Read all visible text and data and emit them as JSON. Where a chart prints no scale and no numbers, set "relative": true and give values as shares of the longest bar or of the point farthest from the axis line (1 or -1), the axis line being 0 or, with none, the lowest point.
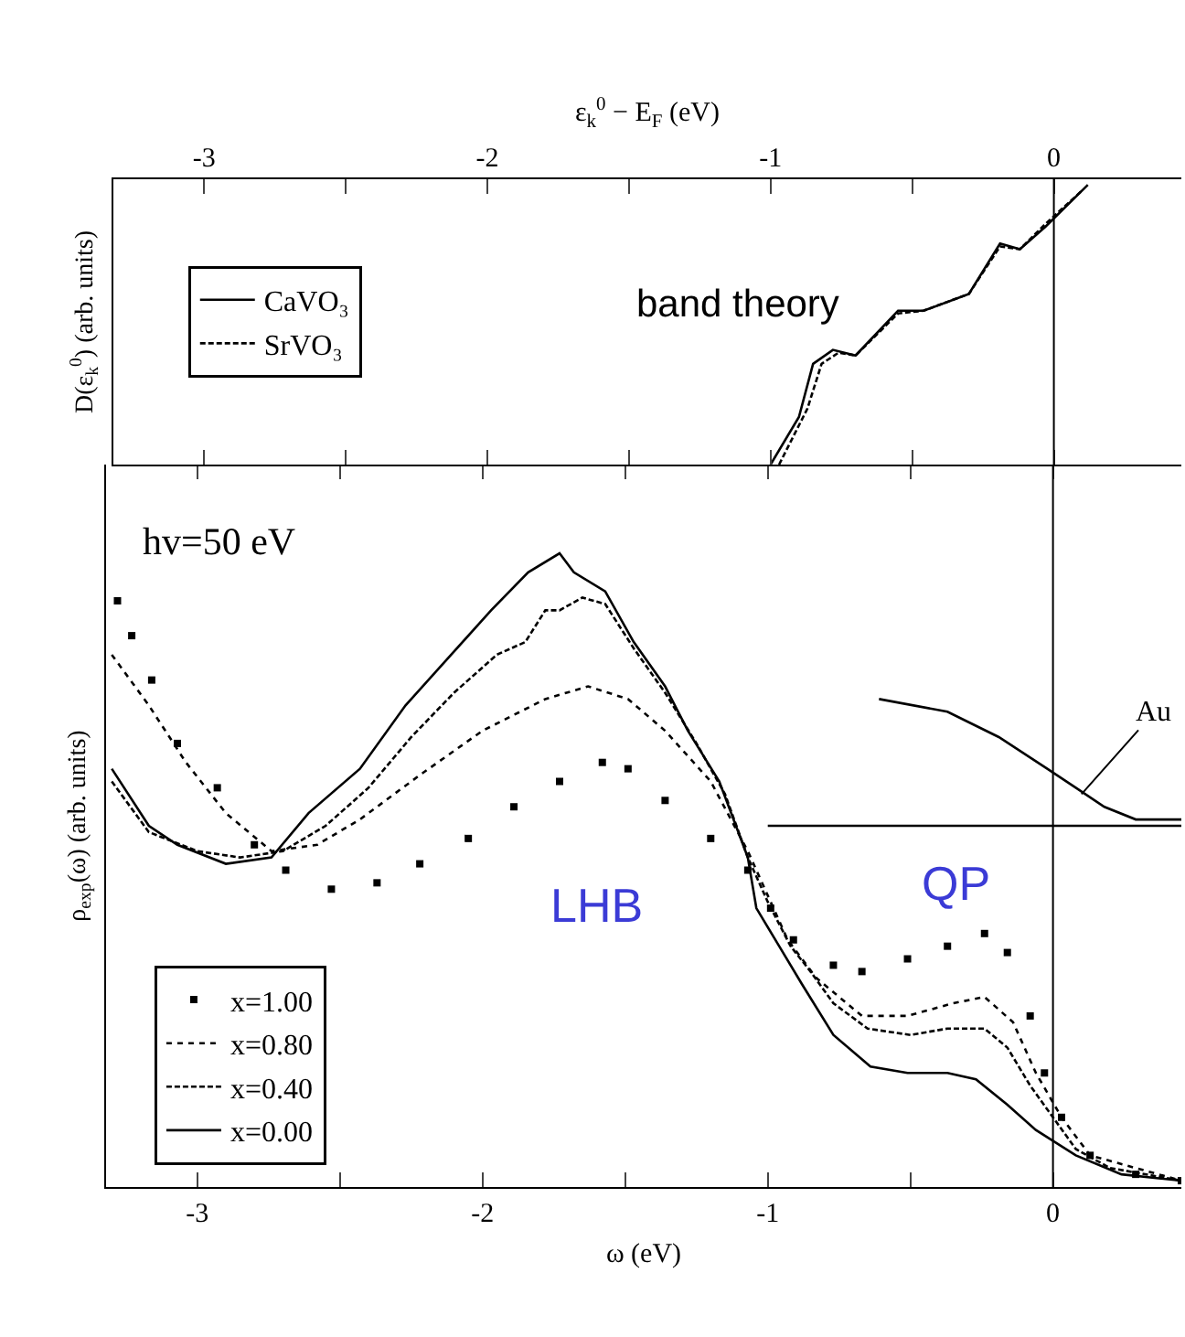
{
  "chart_data": [
    {
      "type": "line",
      "relative": true,
      "xlabel": "ε$_{k}$$^{0}$ − E$_{F}$ (eV)",
      "ylabel": "D(ε$_{k}$$^{0}$) (arb. units)",
      "xlim": [
        -3.32,
        0.45
      ],
      "xticks": [
        -3,
        {
          "value": -2.5,
          "label": null
        },
        -2,
        {
          "value": -1.5,
          "label": null
        },
        -1,
        {
          "value": -0.5,
          "label": null
        },
        0
      ],
      "grid": false,
      "legend": "left",
      "annotations": [
        "band theory"
      ],
      "ref_lines": [
        {
          "axis": "x",
          "value": 0,
          "color": "#000000"
        }
      ],
      "series": [
        {
          "name": "CaVO₃",
          "color": "#000000",
          "line_style": "solid",
          "x": [
            -1.0,
            -0.9,
            -0.85,
            -0.78,
            -0.7,
            -0.55,
            -0.46,
            -0.3,
            -0.19,
            -0.12,
            -0.03,
            0.12
          ],
          "values": [
            0,
            0.17,
            0.36,
            0.41,
            0.39,
            0.55,
            0.55,
            0.61,
            0.79,
            0.77,
            0.85,
            1.0
          ]
        },
        {
          "name": "SrVO₃",
          "color": "#000000",
          "line_style": "dashed",
          "x": [
            -0.97,
            -0.87,
            -0.82,
            -0.76,
            -0.7,
            -0.55,
            -0.46,
            -0.3,
            -0.19,
            -0.12,
            -0.03,
            0.1
          ],
          "values": [
            0,
            0.2,
            0.36,
            0.4,
            0.39,
            0.54,
            0.55,
            0.61,
            0.78,
            0.77,
            0.86,
            0.98
          ]
        }
      ]
    },
    {
      "type": "line",
      "relative": true,
      "xlabel": "ω (eV)",
      "ylabel": "ρ$_{exp}$(ω) (arb. units)",
      "xlim": [
        -3.32,
        0.45
      ],
      "xticks": [
        -3,
        {
          "value": -2.5,
          "label": null
        },
        -2,
        {
          "value": -1.5,
          "label": null
        },
        -1,
        {
          "value": -0.5,
          "label": null
        },
        0
      ],
      "grid": false,
      "legend": "bottom left",
      "annotations": [
        "hv=50 eV",
        "LHB",
        "QP",
        {
          "text": "Au",
          "x": 0.1,
          "y": 0.62
        }
      ],
      "ref_lines": [
        {
          "axis": "x",
          "value": 0,
          "color": "#000000"
        }
      ],
      "series": [
        {
          "name": "x=1.00",
          "type": "scatter",
          "marker": "square",
          "color": "#000000",
          "x": [
            -3.28,
            -3.23,
            -3.16,
            -3.07,
            -2.93,
            -2.8,
            -2.69,
            -2.53,
            -2.37,
            -2.22,
            -2.05,
            -1.89,
            -1.73,
            -1.58,
            -1.49,
            -1.36,
            -1.2,
            -1.07,
            -0.99,
            -0.91,
            -0.77,
            -0.67,
            -0.51,
            -0.37,
            -0.24,
            -0.16,
            -0.08,
            -0.03,
            0.03,
            0.13,
            0.29,
            0.45
          ],
          "values": [
            0.925,
            0.87,
            0.8,
            0.7,
            0.63,
            0.54,
            0.5,
            0.47,
            0.48,
            0.51,
            0.55,
            0.6,
            0.64,
            0.67,
            0.66,
            0.61,
            0.55,
            0.5,
            0.44,
            0.39,
            0.35,
            0.34,
            0.36,
            0.38,
            0.4,
            0.37,
            0.27,
            0.18,
            0.11,
            0.05,
            0.02,
            0.01
          ]
        },
        {
          "name": "x=0.80",
          "line_style": "dotted",
          "color": "#000000",
          "x": [
            -3.3,
            -3.17,
            -3.04,
            -2.9,
            -2.74,
            -2.58,
            -2.43,
            -2.22,
            -2.0,
            -1.78,
            -1.63,
            -1.49,
            -1.36,
            -1.2,
            -1.07,
            -0.93,
            -0.83,
            -0.67,
            -0.51,
            -0.35,
            -0.24,
            -0.14,
            -0.06,
            0.03,
            0.13,
            0.45
          ],
          "values": [
            0.84,
            0.76,
            0.67,
            0.59,
            0.53,
            0.54,
            0.58,
            0.65,
            0.72,
            0.77,
            0.79,
            0.77,
            0.72,
            0.64,
            0.53,
            0.39,
            0.33,
            0.27,
            0.27,
            0.29,
            0.3,
            0.26,
            0.18,
            0.11,
            0.05,
            0.01
          ]
        },
        {
          "name": "x=0.40",
          "line_style": "dashed",
          "color": "#000000",
          "x": [
            -3.3,
            -3.17,
            -3.0,
            -2.85,
            -2.7,
            -2.55,
            -2.4,
            -2.25,
            -2.1,
            -1.95,
            -1.85,
            -1.78,
            -1.73,
            -1.65,
            -1.57,
            -1.47,
            -1.36,
            -1.25,
            -1.15,
            -1.07,
            -1.0,
            -0.92,
            -0.85,
            -0.77,
            -0.65,
            -0.5,
            -0.37,
            -0.24,
            -0.16,
            -0.08,
            0.0,
            0.08,
            0.2,
            0.45
          ],
          "values": [
            0.64,
            0.56,
            0.53,
            0.52,
            0.53,
            0.57,
            0.63,
            0.71,
            0.78,
            0.84,
            0.86,
            0.91,
            0.91,
            0.93,
            0.92,
            0.85,
            0.78,
            0.7,
            0.62,
            0.52,
            0.45,
            0.38,
            0.34,
            0.29,
            0.25,
            0.24,
            0.25,
            0.25,
            0.22,
            0.16,
            0.11,
            0.06,
            0.03,
            0.01
          ]
        },
        {
          "name": "x=0.00",
          "line_style": "solid",
          "color": "#000000",
          "x": [
            -3.3,
            -3.17,
            -3.07,
            -2.9,
            -2.74,
            -2.61,
            -2.43,
            -2.27,
            -2.11,
            -1.97,
            -1.84,
            -1.73,
            -1.68,
            -1.57,
            -1.47,
            -1.36,
            -1.28,
            -1.17,
            -1.07,
            -1.04,
            -0.96,
            -0.88,
            -0.77,
            -0.64,
            -0.51,
            -0.37,
            -0.27,
            -0.16,
            -0.06,
            0.08,
            0.24,
            0.45
          ],
          "values": [
            0.66,
            0.57,
            0.54,
            0.51,
            0.52,
            0.59,
            0.66,
            0.76,
            0.84,
            0.91,
            0.97,
            1.0,
            0.97,
            0.94,
            0.86,
            0.79,
            0.72,
            0.64,
            0.52,
            0.44,
            0.38,
            0.32,
            0.24,
            0.19,
            0.18,
            0.18,
            0.17,
            0.13,
            0.09,
            0.05,
            0.02,
            0.01
          ]
        },
        {
          "line_style": "solid",
          "color": "#000000",
          "x": [
            -0.61,
            -0.37,
            -0.19,
            -0.02,
            0.08,
            0.18,
            0.29,
            0.45
          ],
          "values": [
            0.77,
            0.75,
            0.71,
            0.66,
            0.63,
            0.6,
            0.58,
            0.58
          ]
        },
        {
          "line_style": "solid",
          "color": "#000000",
          "x": [
            -1.0,
            0.45
          ],
          "values": [
            0.57,
            0.57
          ]
        }
      ]
    }
  ]
}
